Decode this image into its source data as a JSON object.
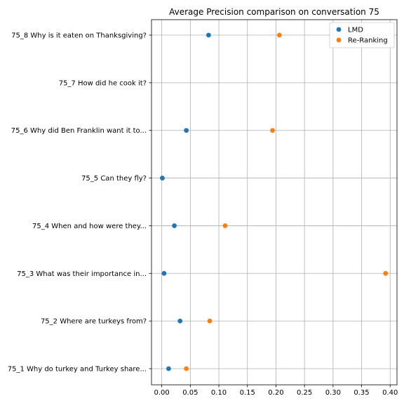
{
  "chart_data": {
    "type": "scatter",
    "title": "Average Precision comparison on conversation 75",
    "xlabel": "",
    "ylabel": "",
    "xlim": [
      -0.018,
      0.412
    ],
    "x_ticks": [
      0.0,
      0.05,
      0.1,
      0.15,
      0.2,
      0.25,
      0.3,
      0.35,
      0.4
    ],
    "x_tick_labels": [
      "0.00",
      "0.05",
      "0.10",
      "0.15",
      "0.20",
      "0.25",
      "0.30",
      "0.35",
      "0.40"
    ],
    "categories": [
      "75_1 Why do turkey and Turkey share...",
      "75_2 Where are turkeys from?",
      "75_3 What was their importance in...",
      "75_4 When and how were they...",
      "75_5 Can they fly?",
      "75_6 Why did Ben Franklin want it to...",
      "75_7 How did he cook it?",
      "75_8 Why is it eaten on Thanksgiving?"
    ],
    "series": [
      {
        "name": "LMD",
        "color": "#1f77b4",
        "values": [
          0.012,
          0.032,
          0.004,
          0.022,
          0.001,
          0.043,
          null,
          0.082
        ]
      },
      {
        "name": "Re-Ranking",
        "color": "#ff7f0e",
        "values": [
          0.043,
          0.084,
          0.392,
          0.111,
          null,
          0.194,
          null,
          0.206
        ]
      }
    ],
    "grid": true,
    "legend_position": "top-right"
  }
}
